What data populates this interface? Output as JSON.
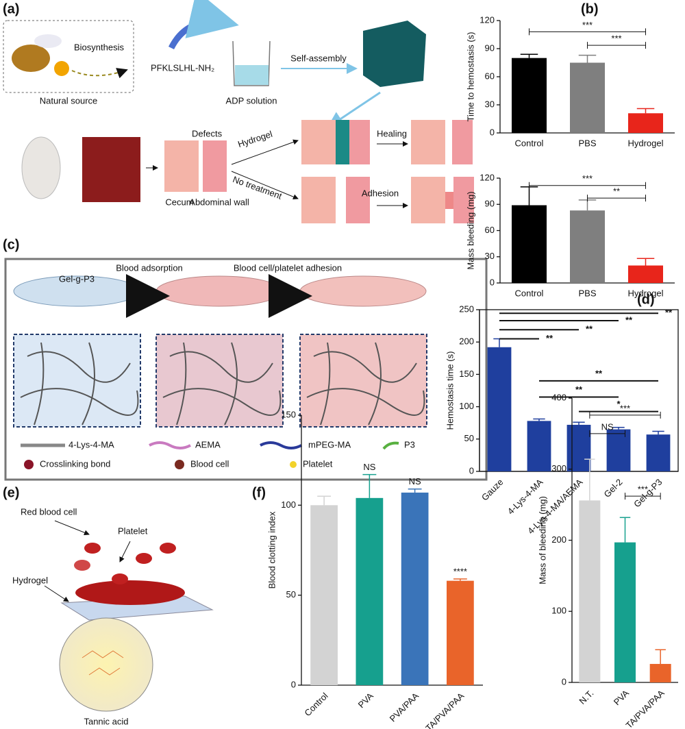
{
  "panel_labels": [
    "(a)",
    "(b)",
    "(c)",
    "(d)",
    "(e)",
    "(f)"
  ],
  "diagram_a": {
    "biosynthesis": "Biosynthesis",
    "natural_source": "Natural source",
    "peptide": "PFKLSLHL-NH₂",
    "solution": "ADP solution",
    "self_assembly": "Self-assembly",
    "defects": "Defects",
    "hydrogel": "Hydrogel",
    "healing": "Healing",
    "no_treatment": "No treatment",
    "adhesion": "Adhesion",
    "cecum": "Cecum",
    "abdominal_wall": "Abdominal wall"
  },
  "diagram_c": {
    "gel": "Gel-g-P3",
    "step1": "Blood adsorption",
    "step2": "Blood cell/platelet adhesion",
    "legend": [
      "4-Lys-4-MA",
      "AEMA",
      "mPEG-MA",
      "P3",
      "Crosslinking bond",
      "Blood cell",
      "Platelet"
    ]
  },
  "diagram_e": {
    "rbc": "Red blood cell",
    "platelet": "Platelet",
    "hydrogel": "Hydrogel",
    "tannic": "Tannic acid"
  },
  "chart_data": [
    {
      "type": "bar",
      "ylabel": "Time to hemostasis (s)",
      "categories": [
        "Control",
        "PBS",
        "Hydrogel"
      ],
      "values": [
        80,
        75,
        21
      ],
      "errors": [
        4,
        8,
        5
      ],
      "colors": [
        "#000000",
        "#7f7f7f",
        "#e8251b"
      ],
      "ylim": [
        0,
        120
      ],
      "yticks": [
        0,
        30,
        60,
        90,
        120
      ],
      "frame": "axes",
      "annotations": [
        "***",
        "***"
      ]
    },
    {
      "type": "bar",
      "ylabel": "Mass bleeding (mg)",
      "categories": [
        "Control",
        "PBS",
        "Hydrogel"
      ],
      "values": [
        89,
        83,
        20
      ],
      "errors": [
        21,
        12,
        8
      ],
      "colors": [
        "#000000",
        "#7f7f7f",
        "#e8251b"
      ],
      "ylim": [
        0,
        120
      ],
      "yticks": [
        0,
        30,
        60,
        90,
        120
      ],
      "frame": "axes",
      "annotations": [
        "***",
        "**"
      ]
    },
    {
      "type": "bar",
      "ylabel": "Hemostasis time (s)",
      "categories": [
        "Gauze",
        "4-Lys-4-MA",
        "4-Lys-4-MA/AEMA",
        "Gel-2",
        "Gel-g-P3"
      ],
      "values": [
        192,
        78,
        72,
        65,
        57
      ],
      "errors": [
        13,
        3,
        4,
        3,
        5
      ],
      "colors": [
        "#1f3f9e",
        "#1f3f9e",
        "#1f3f9e",
        "#1f3f9e",
        "#1f3f9e"
      ],
      "ylim": [
        0,
        250
      ],
      "yticks": [
        0,
        50,
        100,
        150,
        200,
        250
      ],
      "frame": "box",
      "annotations": [
        "**",
        "**",
        "**",
        "**",
        "**",
        "**",
        "*"
      ]
    },
    {
      "type": "bar",
      "ylabel": "Blood clotting index",
      "categories": [
        "Control",
        "PVA",
        "PVA/PAA",
        "TA/PVA/PAA"
      ],
      "values": [
        100,
        104,
        107,
        58
      ],
      "errors": [
        5,
        13,
        2,
        1
      ],
      "colors": [
        "#d3d3d3",
        "#16a08e",
        "#3a74b9",
        "#e9642a"
      ],
      "ylim": [
        0,
        150
      ],
      "yticks": [
        0,
        50,
        100,
        150
      ],
      "frame": "axes",
      "annotations": [
        "NS",
        "NS",
        "****"
      ]
    },
    {
      "type": "bar",
      "ylabel": "Mass of bleeding (mg)",
      "categories": [
        "N.T.",
        "PVA",
        "TA/PVA/PAA"
      ],
      "values": [
        256,
        197,
        26
      ],
      "errors": [
        58,
        35,
        20
      ],
      "colors": [
        "#d3d3d3",
        "#16a08e",
        "#e9642a"
      ],
      "ylim": [
        0,
        400
      ],
      "yticks": [
        0,
        100,
        200,
        300,
        400
      ],
      "frame": "axes",
      "annotations": [
        "NS",
        "***",
        "***"
      ]
    }
  ]
}
